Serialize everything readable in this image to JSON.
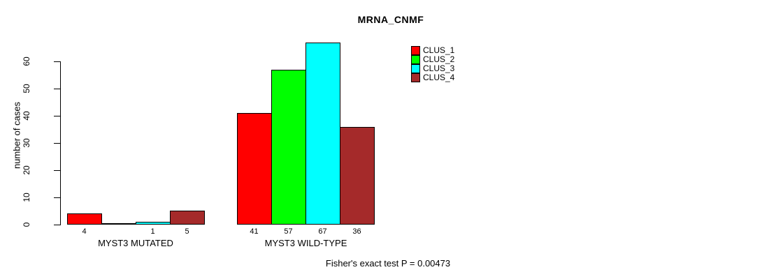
{
  "chart_data": {
    "type": "bar",
    "title": "MRNA_CNMF",
    "ylabel": "number of cases",
    "xlabel": "",
    "ylim": [
      0,
      67
    ],
    "y_ticks": [
      0,
      10,
      20,
      30,
      40,
      50,
      60
    ],
    "grid": false,
    "legend_position": "top-right",
    "categories": [
      "MYST3 MUTATED",
      "MYST3 WILD-TYPE"
    ],
    "series": [
      {
        "name": "CLUS_1",
        "color": "#FF0000",
        "values": [
          4,
          41
        ]
      },
      {
        "name": "CLUS_2",
        "color": "#00FF00",
        "values": [
          0,
          57
        ]
      },
      {
        "name": "CLUS_3",
        "color": "#00FFFF",
        "values": [
          1,
          67
        ]
      },
      {
        "name": "CLUS_4",
        "color": "#A52A2A",
        "values": [
          5,
          36
        ]
      }
    ],
    "bar_value_labels": [
      [
        "4",
        "",
        "1",
        "5"
      ],
      [
        "41",
        "57",
        "67",
        "36"
      ]
    ],
    "annotation": "Fisher's exact test P = 0.00473"
  }
}
